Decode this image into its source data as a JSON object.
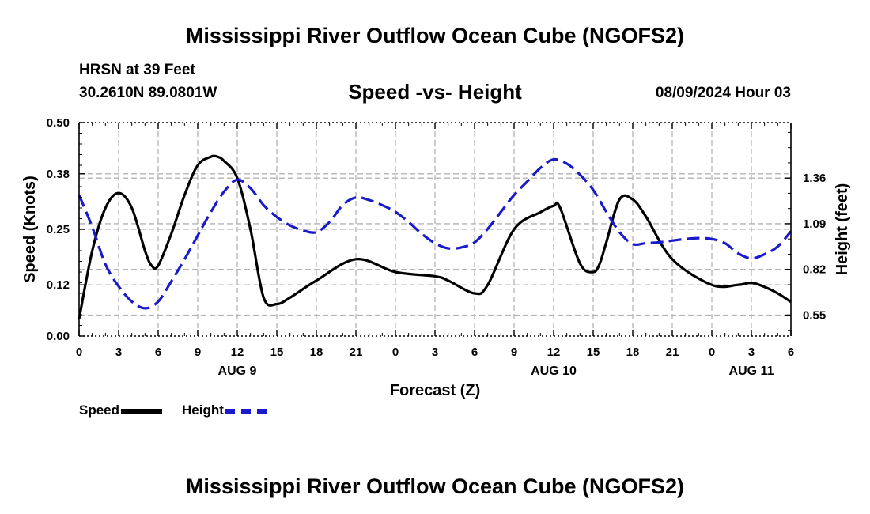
{
  "header": {
    "title": "Mississippi River Outflow Ocean Cube (NGOFS2)",
    "station": "HRSN at 39 Feet",
    "coords": "30.2610N  89.0801W",
    "datetime": "08/09/2024 Hour 03"
  },
  "footer": {
    "title": "Mississippi River Outflow Ocean Cube (NGOFS2)"
  },
  "legend": {
    "speed_label": "Speed",
    "height_label": "Height"
  },
  "chart_data": {
    "type": "line",
    "title": "Speed -vs- Height",
    "xlabel": "Forecast (Z)",
    "ylabel": "Speed (Knots)",
    "ylabel_right": "Height (feet)",
    "ylim": [
      0,
      0.5
    ],
    "ylim_right": [
      0.426,
      1.688
    ],
    "yticks": [
      0.0,
      0.12,
      0.25,
      0.38,
      0.5
    ],
    "ytick_labels": [
      "0.00",
      "0.12",
      "0.25",
      "0.38",
      "0.50"
    ],
    "yticks_right": [
      0.55,
      0.82,
      1.09,
      1.36
    ],
    "ytick_labels_right": [
      "0.55",
      "0.82",
      "1.09",
      "1.36"
    ],
    "xlim": [
      0,
      54
    ],
    "xticks": [
      0,
      3,
      6,
      9,
      12,
      15,
      18,
      21,
      24,
      27,
      30,
      33,
      36,
      39,
      42,
      45,
      48,
      51,
      54
    ],
    "xtick_labels": [
      "0",
      "3",
      "6",
      "9",
      "12",
      "15",
      "18",
      "21",
      "0",
      "3",
      "6",
      "9",
      "12",
      "15",
      "18",
      "21",
      "0",
      "3",
      "6"
    ],
    "day_labels": [
      {
        "x": 12,
        "label": "AUG 9"
      },
      {
        "x": 36,
        "label": "AUG 10"
      },
      {
        "x": 51,
        "label": "AUG 11"
      }
    ],
    "grid": true,
    "series": [
      {
        "name": "Speed",
        "axis": "left",
        "color": "#000000",
        "dash": "solid",
        "x": [
          0,
          1,
          2,
          3,
          4,
          5,
          5.5,
          6,
          7,
          8,
          9,
          10,
          10.5,
          11,
          12,
          13,
          14,
          15,
          16,
          18,
          21,
          24,
          27,
          28,
          30,
          31,
          33,
          35,
          36,
          36.5,
          38,
          39,
          39.5,
          40,
          41,
          42,
          43,
          45,
          48,
          50,
          51,
          52,
          53,
          54
        ],
        "values": [
          0.04,
          0.2,
          0.3,
          0.335,
          0.3,
          0.2,
          0.165,
          0.165,
          0.24,
          0.33,
          0.4,
          0.42,
          0.42,
          0.41,
          0.37,
          0.25,
          0.09,
          0.075,
          0.09,
          0.13,
          0.18,
          0.15,
          0.14,
          0.13,
          0.1,
          0.12,
          0.25,
          0.29,
          0.305,
          0.3,
          0.17,
          0.15,
          0.17,
          0.22,
          0.32,
          0.32,
          0.28,
          0.18,
          0.12,
          0.12,
          0.125,
          0.115,
          0.1,
          0.08
        ]
      },
      {
        "name": "Height",
        "axis": "right",
        "color": "#1a1acc",
        "dash": "dashed",
        "x": [
          0,
          1,
          2,
          3,
          4,
          5,
          6,
          7,
          8,
          9,
          10,
          11,
          12,
          13,
          14,
          15,
          16,
          17,
          18,
          19,
          20,
          21,
          22,
          23,
          24,
          25,
          26,
          27,
          28,
          29,
          30,
          31,
          32,
          33,
          34,
          35,
          36,
          37,
          38,
          39,
          40,
          41,
          42,
          43,
          44,
          45,
          46,
          47,
          48,
          49,
          50,
          51,
          52,
          53,
          54
        ],
        "values": [
          1.26,
          1.07,
          0.85,
          0.72,
          0.63,
          0.59,
          0.63,
          0.75,
          0.88,
          1.02,
          1.16,
          1.28,
          1.35,
          1.3,
          1.2,
          1.13,
          1.08,
          1.05,
          1.04,
          1.1,
          1.2,
          1.245,
          1.23,
          1.2,
          1.16,
          1.1,
          1.03,
          0.975,
          0.945,
          0.95,
          0.98,
          1.06,
          1.16,
          1.26,
          1.34,
          1.42,
          1.47,
          1.445,
          1.38,
          1.29,
          1.16,
          1.04,
          0.97,
          0.975,
          0.98,
          0.99,
          1.0,
          1.005,
          1.0,
          0.975,
          0.915,
          0.885,
          0.91,
          0.955,
          1.045
        ]
      }
    ]
  }
}
